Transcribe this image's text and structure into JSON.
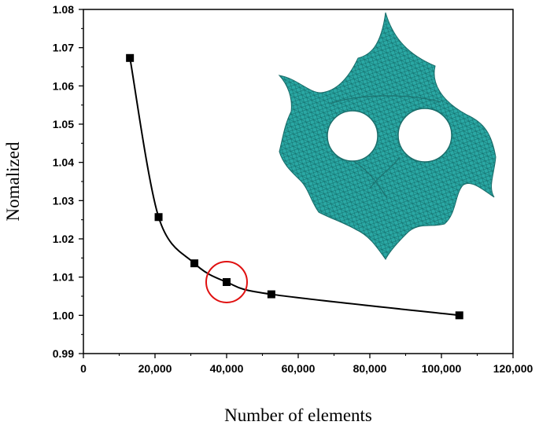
{
  "chart_data": {
    "type": "line",
    "title": "",
    "xlabel": "Number of elements",
    "ylabel": "Nomalized",
    "xlim": [
      0,
      120000
    ],
    "ylim": [
      0.99,
      1.08
    ],
    "xticks": [
      0,
      20000,
      40000,
      60000,
      80000,
      100000,
      120000
    ],
    "xtick_labels": [
      "0",
      "20,000",
      "40,000",
      "60,000",
      "80,000",
      "100,000",
      "120,000"
    ],
    "yticks": [
      0.99,
      1.0,
      1.01,
      1.02,
      1.03,
      1.04,
      1.05,
      1.06,
      1.07,
      1.08
    ],
    "ytick_labels": [
      "0.99",
      "1.00",
      "1.01",
      "1.02",
      "1.03",
      "1.04",
      "1.05",
      "1.06",
      "1.07",
      "1.08"
    ],
    "grid": false,
    "marker": "square",
    "line_color": "#000000",
    "series": [
      {
        "x": [
          13000,
          21000,
          31000,
          40000,
          52500,
          105000
        ],
        "y": [
          1.0673,
          1.0257,
          1.0136,
          1.0087,
          1.0055,
          1.0
        ]
      }
    ],
    "highlight": {
      "x": 40000,
      "y": 1.0087,
      "color": "#e01010"
    },
    "inset_image": {
      "description_icon": "gyroid-mesh-icon",
      "color": "#2aa8a4"
    }
  }
}
